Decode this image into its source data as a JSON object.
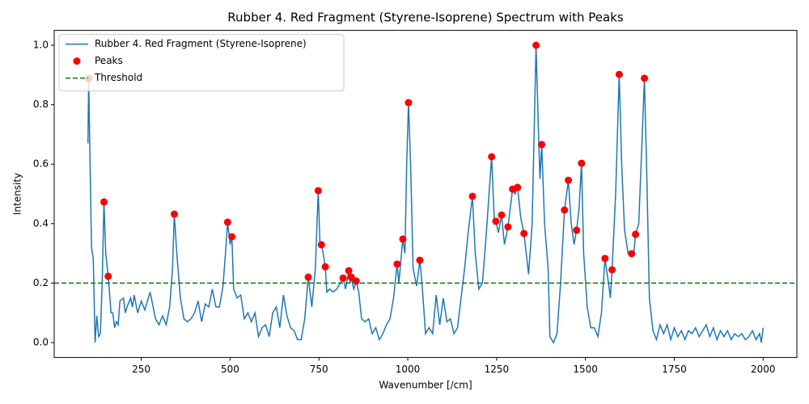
{
  "chart_data": {
    "type": "line",
    "title": "Rubber 4. Red Fragment (Styrene-Isoprene) Spectrum with Peaks",
    "xlabel": "Wavenumber [/cm]",
    "ylabel": "Intensity",
    "xlim": [
      5,
      2095
    ],
    "ylim": [
      -0.05,
      1.05
    ],
    "xticks": [
      250,
      500,
      750,
      1000,
      1250,
      1500,
      1750,
      2000
    ],
    "yticks": [
      {
        "value": 0,
        "label": "0.0"
      },
      0.2,
      0.4,
      0.6,
      0.8,
      {
        "value": 1,
        "label": "1.0"
      }
    ],
    "legend": "upper left",
    "series": [
      {
        "name": "Rubber 4. Red Fragment (Styrene-Isoprene)",
        "type": "line",
        "color": "#1f77b4",
        "x": [
          100,
          102,
          106,
          110,
          115,
          120,
          125,
          130,
          135,
          140,
          145,
          150,
          157,
          165,
          170,
          175,
          180,
          185,
          190,
          200,
          205,
          210,
          220,
          225,
          230,
          240,
          250,
          260,
          275,
          280,
          290,
          300,
          310,
          320,
          330,
          338,
          343,
          350,
          360,
          370,
          380,
          390,
          400,
          410,
          420,
          430,
          440,
          450,
          460,
          470,
          480,
          487,
          493,
          500,
          505,
          510,
          520,
          530,
          540,
          550,
          560,
          570,
          580,
          590,
          600,
          610,
          620,
          630,
          640,
          650,
          660,
          670,
          680,
          690,
          700,
          710,
          720,
          730,
          740,
          748,
          753,
          757,
          762,
          768,
          772,
          780,
          790,
          800,
          810,
          818,
          825,
          834,
          838,
          841,
          848,
          855,
          862,
          870,
          880,
          890,
          900,
          910,
          920,
          930,
          940,
          950,
          960,
          970,
          975,
          986,
          992,
          997,
          1002,
          1008,
          1015,
          1025,
          1034,
          1040,
          1050,
          1060,
          1070,
          1080,
          1090,
          1100,
          1110,
          1120,
          1130,
          1140,
          1150,
          1160,
          1170,
          1182,
          1190,
          1200,
          1210,
          1220,
          1236,
          1244,
          1248,
          1255,
          1264,
          1272,
          1282,
          1295,
          1302,
          1309,
          1318,
          1327,
          1340,
          1350,
          1361,
          1368,
          1372,
          1377,
          1385,
          1395,
          1400,
          1410,
          1420,
          1430,
          1441,
          1452,
          1460,
          1468,
          1475,
          1482,
          1489,
          1495,
          1505,
          1515,
          1525,
          1535,
          1545,
          1555,
          1565,
          1570,
          1575,
          1585,
          1595,
          1602,
          1610,
          1620,
          1630,
          1636,
          1641,
          1650,
          1660,
          1666,
          1672,
          1680,
          1690,
          1700,
          1710,
          1720,
          1730,
          1740,
          1750,
          1760,
          1770,
          1780,
          1790,
          1800,
          1810,
          1820,
          1830,
          1840,
          1850,
          1860,
          1870,
          1880,
          1890,
          1900,
          1910,
          1920,
          1930,
          1940,
          1950,
          1960,
          1970,
          1980,
          1990,
          1995,
          2000
        ],
        "values": [
          0.67,
          0.888,
          0.6,
          0.32,
          0.28,
          0,
          0.09,
          0.02,
          0.03,
          0.2,
          0.473,
          0.3,
          0.223,
          0.1,
          0.1,
          0.05,
          0.07,
          0.06,
          0.14,
          0.15,
          0.1,
          0.12,
          0.15,
          0.12,
          0.16,
          0.1,
          0.14,
          0.11,
          0.17,
          0.14,
          0.08,
          0.06,
          0.09,
          0.06,
          0.12,
          0.25,
          0.432,
          0.3,
          0.15,
          0.08,
          0.07,
          0.08,
          0.1,
          0.14,
          0.07,
          0.13,
          0.12,
          0.18,
          0.12,
          0.12,
          0.19,
          0.3,
          0.405,
          0.33,
          0.356,
          0.18,
          0.15,
          0.16,
          0.08,
          0.1,
          0.07,
          0.1,
          0.02,
          0.05,
          0.06,
          0.02,
          0.1,
          0.12,
          0.05,
          0.16,
          0.09,
          0.05,
          0.04,
          0.01,
          0.01,
          0.08,
          0.22,
          0.12,
          0.25,
          0.511,
          0.33,
          0.329,
          0.3,
          0.255,
          0.17,
          0.18,
          0.17,
          0.18,
          0.2,
          0.217,
          0.18,
          0.242,
          0.2,
          0.22,
          0.18,
          0.207,
          0.17,
          0.08,
          0.07,
          0.08,
          0.03,
          0.05,
          0.01,
          0.03,
          0.06,
          0.08,
          0.15,
          0.264,
          0.2,
          0.348,
          0.3,
          0.6,
          0.807,
          0.6,
          0.25,
          0.19,
          0.277,
          0.2,
          0.03,
          0.05,
          0.03,
          0.16,
          0.06,
          0.15,
          0.07,
          0.08,
          0.03,
          0.05,
          0.15,
          0.25,
          0.37,
          0.492,
          0.3,
          0.18,
          0.2,
          0.35,
          0.625,
          0.4,
          0.408,
          0.37,
          0.429,
          0.33,
          0.389,
          0.516,
          0.5,
          0.522,
          0.42,
          0.367,
          0.23,
          0.4,
          1,
          0.7,
          0.55,
          0.666,
          0.4,
          0.25,
          0.02,
          0,
          0.03,
          0.2,
          0.446,
          0.546,
          0.4,
          0.33,
          0.378,
          0.45,
          0.603,
          0.3,
          0.12,
          0.05,
          0.05,
          0.02,
          0.1,
          0.283,
          0.2,
          0.15,
          0.245,
          0.5,
          0.902,
          0.6,
          0.38,
          0.3,
          0.299,
          0.3,
          0.364,
          0.4,
          0.7,
          0.889,
          0.6,
          0.15,
          0.04,
          0.01,
          0.06,
          0.03,
          0.06,
          0.01,
          0.05,
          0.02,
          0.04,
          0.01,
          0.04,
          0.03,
          0.05,
          0.02,
          0.04,
          0.06,
          0.02,
          0.05,
          0.01,
          0.04,
          0.02,
          0.04,
          0.01,
          0.03,
          0.02,
          0.03,
          0.01,
          0.02,
          0.04,
          0.01,
          0.03,
          0,
          0.05
        ]
      },
      {
        "name": "Peaks",
        "type": "scatter",
        "color": "#ff0000",
        "x": [
          102,
          145,
          157,
          343,
          493,
          505,
          720,
          748,
          757,
          768,
          818,
          834,
          841,
          855,
          970,
          986,
          1002,
          1034,
          1182,
          1236,
          1248,
          1264,
          1282,
          1295,
          1309,
          1327,
          1361,
          1377,
          1441,
          1452,
          1475,
          1489,
          1555,
          1575,
          1595,
          1630,
          1641,
          1666
        ],
        "values": [
          0.888,
          0.473,
          0.223,
          0.432,
          0.405,
          0.356,
          0.22,
          0.511,
          0.329,
          0.255,
          0.217,
          0.242,
          0.22,
          0.207,
          0.264,
          0.348,
          0.807,
          0.277,
          0.492,
          0.625,
          0.408,
          0.429,
          0.389,
          0.516,
          0.522,
          0.367,
          1,
          0.666,
          0.446,
          0.546,
          0.378,
          0.603,
          0.283,
          0.245,
          0.902,
          0.299,
          0.364,
          0.889
        ]
      }
    ],
    "threshold": {
      "name": "Threshold",
      "value": 0.2,
      "color": "#008000",
      "style": "dashed"
    }
  }
}
